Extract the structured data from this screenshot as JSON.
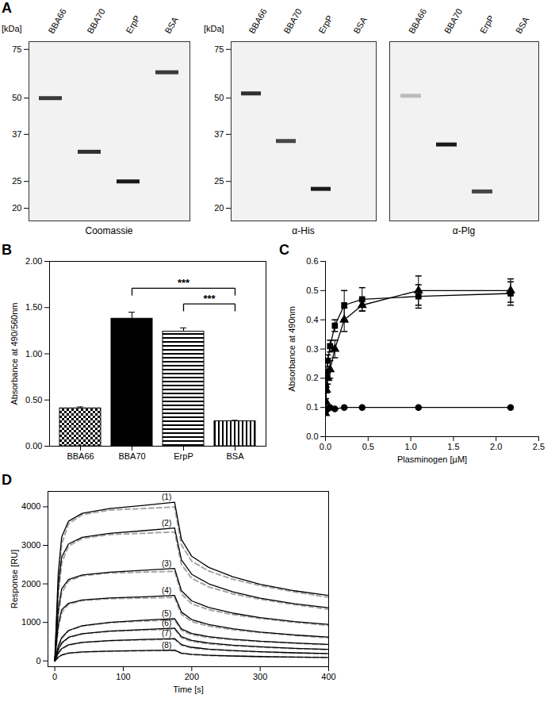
{
  "chart_data": [
    {
      "type": "gel",
      "title": "A",
      "categories": [
        "BBA66",
        "BBA70",
        "ErpP",
        "BSA"
      ],
      "values": [
        50,
        32,
        25,
        62
      ],
      "intensity": [
        0.85,
        0.9,
        1,
        0.85
      ],
      "xlabel": "Coomassie",
      "ylabel": "[kDa]",
      "log": "y",
      "ylim": [
        18,
        80
      ],
      "yticks": [
        20,
        25,
        37,
        50,
        75
      ]
    },
    {
      "type": "gel",
      "categories": [
        "BBA66",
        "BBA70",
        "ErpP",
        "BSA"
      ],
      "values": [
        52,
        35,
        23.5,
        null
      ],
      "intensity": [
        0.9,
        0.8,
        1,
        null
      ],
      "xlabel": "α-His",
      "ylabel": "[kDa]",
      "log": "y",
      "ylim": [
        18,
        80
      ],
      "yticks": [
        20,
        25,
        37,
        50,
        75
      ]
    },
    {
      "type": "gel",
      "categories": [
        "BBA66",
        "BBA70",
        "ErpP",
        "BSA"
      ],
      "values": [
        51,
        34,
        23,
        null
      ],
      "intensity": [
        0.25,
        1,
        0.8,
        null
      ],
      "xlabel": "α-Plg",
      "log": "y",
      "ylim": [
        18,
        80
      ],
      "tick_labels": "x"
    },
    {
      "type": "bar",
      "title": "B",
      "categories": [
        "BBA66",
        "BBA70",
        "ErpP",
        "BSA"
      ],
      "values": [
        0.41,
        1.38,
        1.24,
        0.27
      ],
      "errors": [
        0.015,
        0.07,
        0.04,
        0.01
      ],
      "color": "#000000",
      "ylabel": "Absorbance at 490/560nm",
      "ylim": [
        0,
        2
      ],
      "yticks": [
        {
          "value": 0,
          "label": "0.00"
        },
        {
          "value": 0.5,
          "label": "0.50"
        },
        {
          "value": 1,
          "label": "1.00"
        },
        {
          "value": 1.5,
          "label": "1.50"
        },
        {
          "value": 2,
          "label": "2.00"
        }
      ],
      "annotations": [
        {
          "text": "***",
          "from": "BBA70",
          "to": "BSA"
        },
        {
          "text": "***",
          "from": "ErpP",
          "to": "BSA"
        }
      ]
    },
    {
      "type": "line",
      "title": "C",
      "x": [
        0,
        0.005,
        0.011,
        0.027,
        0.054,
        0.11,
        0.22,
        0.43,
        1.09,
        2.17
      ],
      "xlabel": "Plasminogen [µM]",
      "ylabel": "Absorbance at 490nm",
      "xlim": [
        0,
        2.5
      ],
      "xticks": [
        {
          "value": 0,
          "label": "0.0"
        },
        0.5,
        {
          "value": 1,
          "label": "1.0"
        },
        1.5,
        {
          "value": 2,
          "label": "2.0"
        },
        2.5
      ],
      "ylim": [
        0,
        0.6
      ],
      "yticks": [
        {
          "value": 0,
          "label": "0.0"
        },
        0.1,
        0.2,
        0.3,
        0.4,
        0.5,
        0.6
      ],
      "series": [
        {
          "color": "#000000",
          "marker": "square",
          "values": [
            0.09,
            0.17,
            0.22,
            0.26,
            0.31,
            0.38,
            0.45,
            0.47,
            0.48,
            0.49
          ],
          "errors": [
            0,
            0.01,
            0.01,
            0.02,
            0.02,
            0.02,
            0.05,
            0.04,
            0.04,
            0.04
          ]
        },
        {
          "color": "#000000",
          "marker": "triangle",
          "values": [
            0.08,
            0.12,
            0.16,
            0.2,
            0.23,
            0.3,
            0.4,
            0.45,
            0.5,
            0.5
          ],
          "errors": [
            0,
            0.01,
            0.01,
            0.02,
            0.03,
            0.03,
            0.04,
            0.02,
            0.05,
            0.04
          ]
        },
        {
          "color": "#000000",
          "marker": "circle",
          "values": [
            0.095,
            0.095,
            0.095,
            0.095,
            0.1,
            0.095,
            0.1,
            0.1,
            0.1,
            0.1
          ],
          "errors": [
            0,
            0,
            0,
            0,
            0,
            0,
            0,
            0,
            0,
            0
          ]
        }
      ]
    },
    {
      "type": "line",
      "title": "D",
      "x": [
        0,
        5,
        10,
        20,
        40,
        80,
        130,
        175,
        185,
        200,
        225,
        260,
        300,
        350,
        400
      ],
      "xlabel": "Time [s]",
      "ylabel": "Response [RU]",
      "xlim": [
        -10,
        400
      ],
      "xticks": [
        0,
        100,
        200,
        300,
        400
      ],
      "ylim": [
        -150,
        4400
      ],
      "yticks": [
        0,
        1000,
        2000,
        3000,
        4000
      ],
      "series": [
        {
          "color": "#a6a6a6",
          "line_style": "dashed",
          "values": [
            0,
            1998,
            3037,
            3556,
            3796,
            3916,
            3956,
            3996,
            3011,
            2588,
            2330,
            2119,
            1955,
            1791,
            1650
          ]
        },
        {
          "color": "#a6a6a6",
          "line_style": "dashed",
          "values": [
            0,
            1674,
            2544,
            2979,
            3180,
            3280,
            3314,
            3347,
            2504,
            2143,
            1922,
            1741,
            1601,
            1460,
            1340
          ]
        },
        {
          "color": "#a6a6a6",
          "line_style": "dashed",
          "values": [
            0,
            1164,
            1769,
            2072,
            2212,
            2281,
            2305,
            2328,
            1737,
            1483,
            1328,
            1202,
            1103,
            1004,
            920
          ]
        },
        {
          "color": "#a6a6a6",
          "line_style": "dashed",
          "values": [
            0,
            825,
            1253,
            1468,
            1567,
            1616,
            1633,
            1649,
            1208,
            1020,
            904,
            810,
            736,
            663,
            600
          ]
        },
        {
          "color": "#a6a6a6",
          "line_style": "dashed",
          "values": [
            0,
            341,
            576,
            779,
            907,
            992,
            1035,
            1067,
            795,
            679,
            608,
            549,
            504,
            459,
            420
          ]
        },
        {
          "color": "#a6a6a6",
          "line_style": "dashed",
          "values": [
            0,
            264,
            446,
            602,
            701,
            767,
            800,
            825,
            600,
            504,
            445,
            397,
            360,
            322,
            290
          ]
        },
        {
          "color": "#a6a6a6",
          "line_style": "dashed",
          "values": [
            0,
            180,
            304,
            411,
            479,
            524,
            546,
            563,
            404,
            336,
            295,
            261,
            234,
            208,
            185
          ]
        },
        {
          "color": "#a6a6a6",
          "line_style": "dashed",
          "values": [
            0,
            87,
            147,
            199,
            231,
            253,
            264,
            272,
            195,
            162,
            141,
            125,
            112,
            99,
            88
          ]
        },
        {
          "name": "(1)",
          "color": "#000000",
          "line_style": "solid",
          "values": [
            0,
            2266,
            3214,
            3626,
            3832,
            3955,
            4038,
            4120,
            3152,
            2716,
            2426,
            2184,
            1990,
            1821,
            1700
          ]
        },
        {
          "name": "(2)",
          "color": "#000000",
          "line_style": "solid",
          "values": [
            0,
            1898,
            2691,
            3036,
            3209,
            3312,
            3381,
            3450,
            2622,
            2249,
            2001,
            1794,
            1628,
            1484,
            1380
          ]
        },
        {
          "name": "(3)",
          "color": "#000000",
          "line_style": "solid",
          "values": [
            0,
            1320,
            1872,
            2112,
            2232,
            2304,
            2352,
            2400,
            1820,
            1559,
            1385,
            1240,
            1124,
            1023,
            950
          ]
        },
        {
          "name": "(4)",
          "color": "#000000",
          "line_style": "solid",
          "values": [
            0,
            935,
            1326,
            1496,
            1581,
            1632,
            1666,
            1700,
            1268,
            1074,
            944,
            836,
            750,
            674,
            620
          ]
        },
        {
          "name": "(5)",
          "color": "#000000",
          "line_style": "solid",
          "values": [
            0,
            385,
            605,
            792,
            913,
            1001,
            1056,
            1100,
            832,
            711,
            631,
            564,
            510,
            464,
            430
          ]
        },
        {
          "name": "(6)",
          "color": "#000000",
          "line_style": "solid",
          "values": [
            0,
            298,
            468,
            612,
            706,
            774,
            816,
            850,
            630,
            531,
            465,
            410,
            366,
            328,
            300
          ]
        },
        {
          "name": "(7)",
          "color": "#000000",
          "line_style": "solid",
          "values": [
            0,
            203,
            319,
            418,
            481,
            528,
            557,
            580,
            424,
            354,
            307,
            268,
            237,
            210,
            190
          ]
        },
        {
          "name": "(8)",
          "color": "#000000",
          "line_style": "solid",
          "values": [
            0,
            98,
            154,
            202,
            232,
            255,
            269,
            280,
            204,
            170,
            147,
            128,
            113,
            100,
            90
          ]
        }
      ]
    }
  ]
}
